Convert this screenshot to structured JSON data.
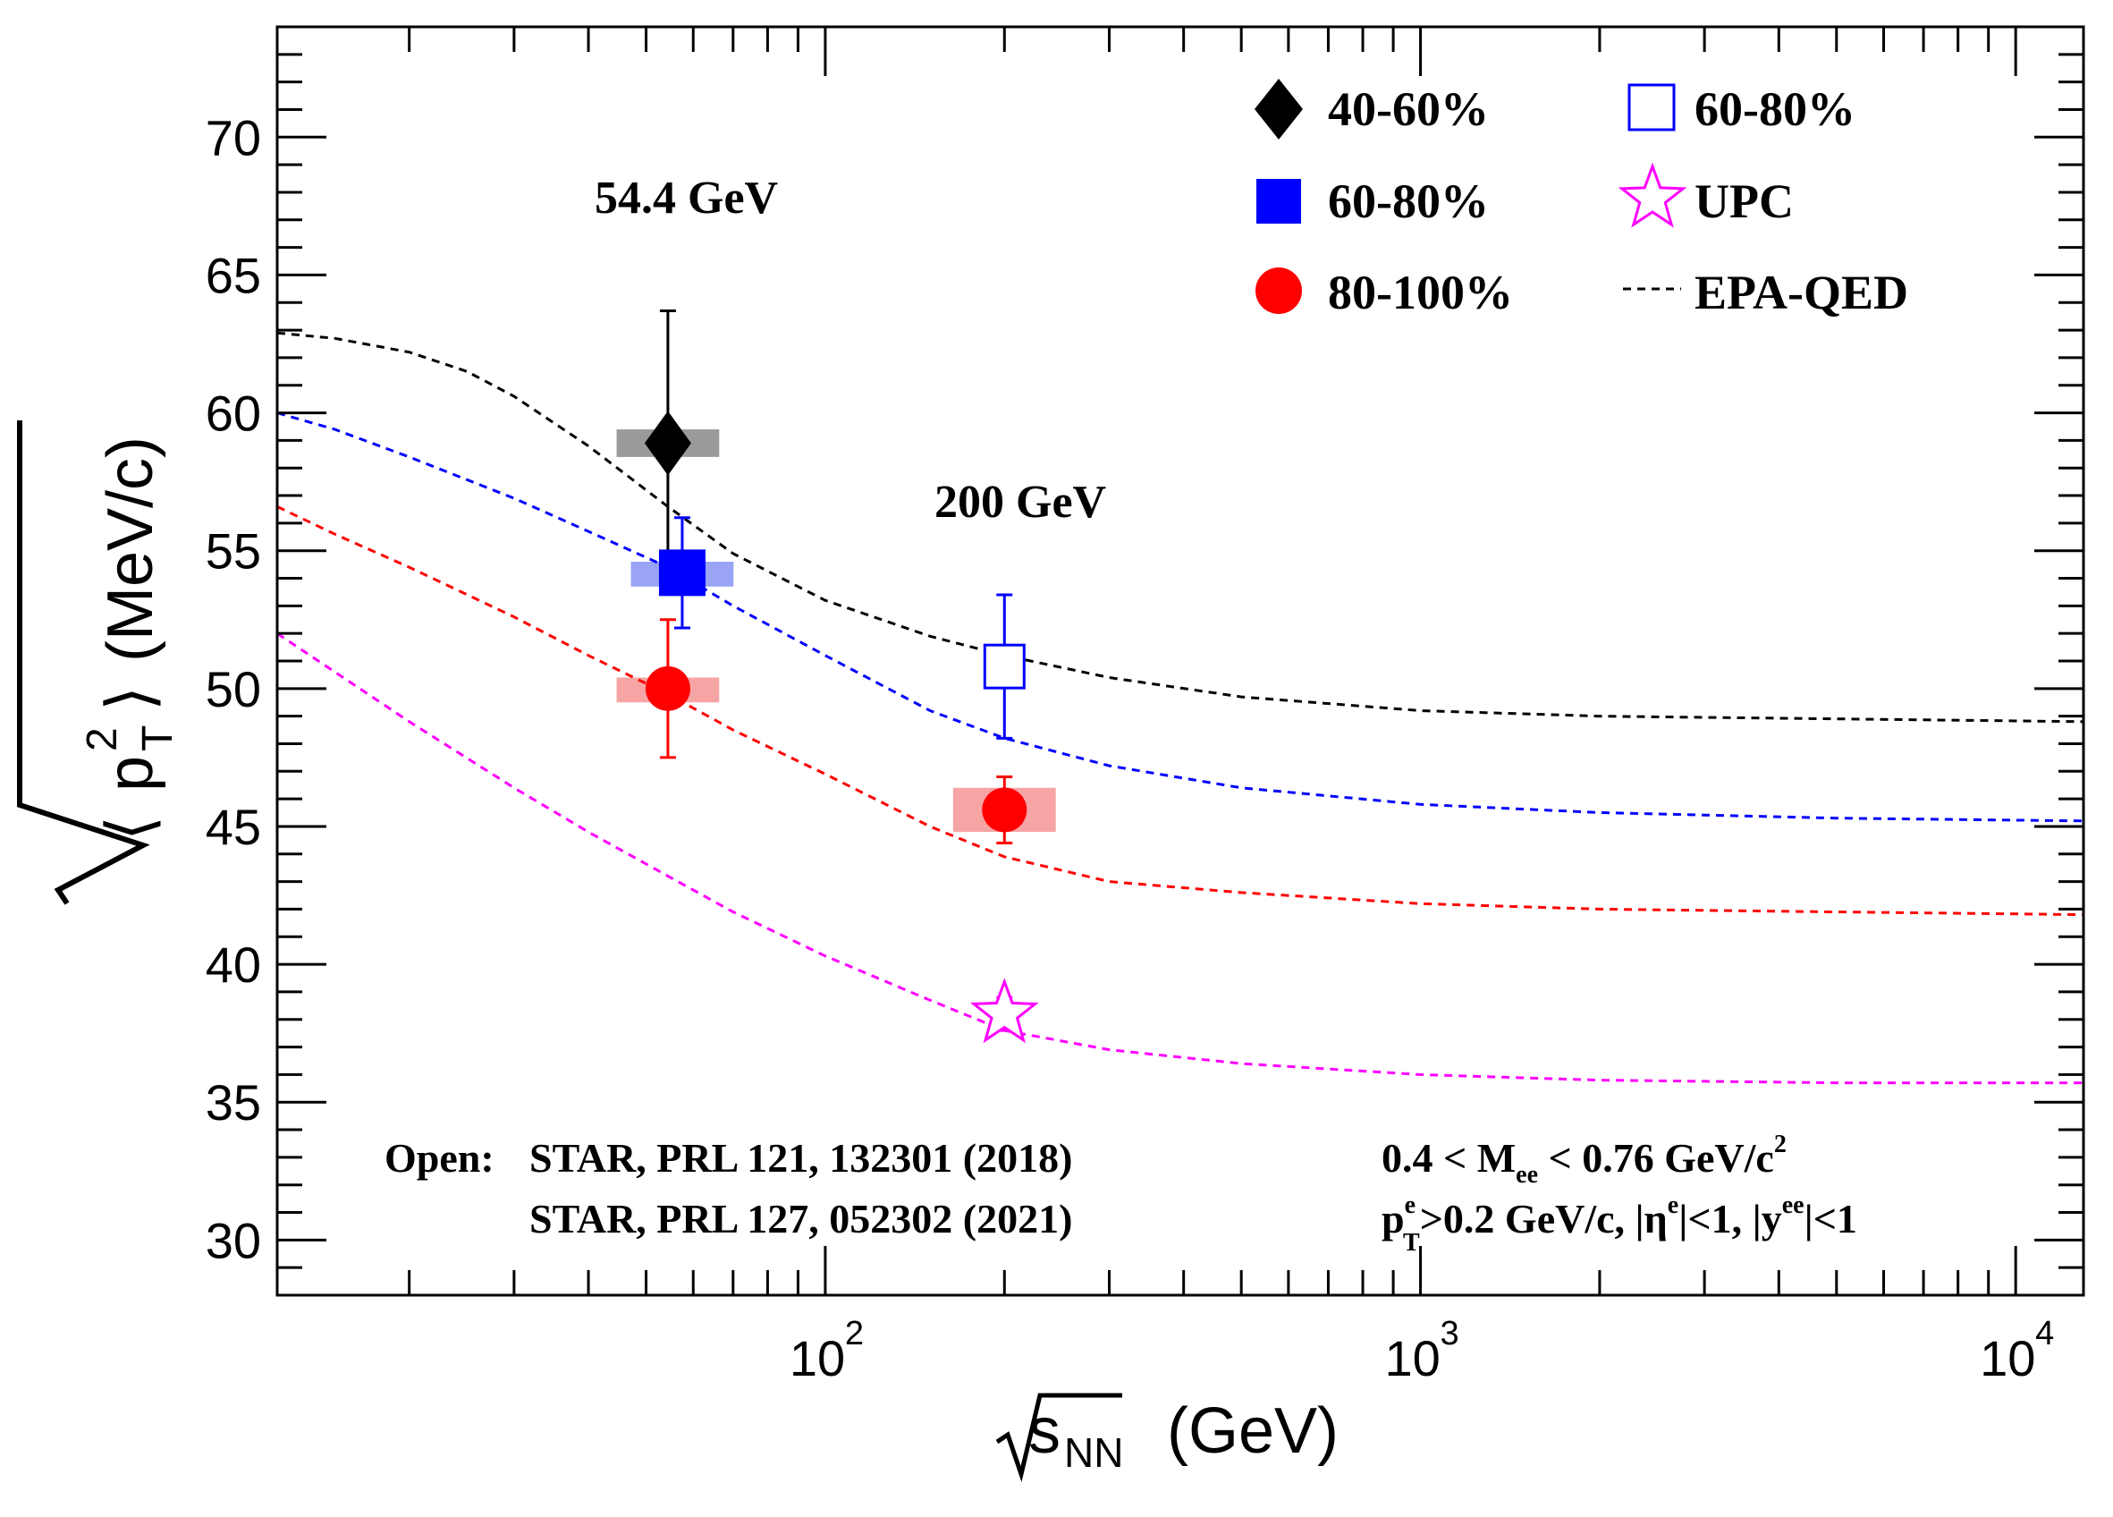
{
  "chart_data": {
    "type": "scatter",
    "title": "",
    "xlabel": "s",
    "xlabel_sub": "NN",
    "xlabel_unit": "(GeV)",
    "ylabel_p": "p",
    "ylabel_sub": "T",
    "ylabel_sup": "2",
    "ylabel_unit": "(MeV/c)",
    "xscale": "log",
    "xlim": [
      12,
      13000
    ],
    "ylim": [
      28,
      74
    ],
    "y_ticks": [
      30,
      35,
      40,
      45,
      50,
      55,
      60,
      65,
      70
    ],
    "x_ticks": [
      {
        "value": 100,
        "base": "10",
        "exp": "2"
      },
      {
        "value": 1000,
        "base": "10",
        "exp": "3"
      },
      {
        "value": 10000,
        "base": "10",
        "exp": "4"
      }
    ],
    "energy_labels": [
      "54.4 GeV",
      "200 GeV"
    ],
    "series": [
      {
        "name": "40-60%",
        "marker": "diamond-filled",
        "color": "#000000",
        "box_color": "#9a9a9a",
        "points": [
          {
            "x": 54.4,
            "y": 58.9,
            "err": 4.8,
            "sys_low": 58.4,
            "sys_high": 59.4
          }
        ]
      },
      {
        "name": "60-80%",
        "marker": "square-filled",
        "color": "#0000ff",
        "box_color": "#9aa4f4",
        "points": [
          {
            "x": 57.5,
            "y": 54.2,
            "err": 2.0,
            "sys_low": 53.7,
            "sys_high": 54.6
          }
        ]
      },
      {
        "name": "80-100%",
        "marker": "circle-filled",
        "color": "#ff0000",
        "box_color": "#f6a4a4",
        "points": [
          {
            "x": 54.4,
            "y": 50.0,
            "err": 2.5,
            "sys_low": 49.5,
            "sys_high": 50.4
          },
          {
            "x": 200,
            "y": 45.6,
            "err": 1.2,
            "sys_low": 44.8,
            "sys_high": 46.4
          }
        ]
      },
      {
        "name": "60-80%",
        "marker": "square-open",
        "color": "#0000ff",
        "points": [
          {
            "x": 200,
            "y": 50.8,
            "err": 2.6
          }
        ]
      },
      {
        "name": "UPC",
        "marker": "star-open",
        "color": "#ff00ff",
        "points": [
          {
            "x": 200,
            "y": 38.2,
            "err": 0.6
          }
        ]
      }
    ],
    "curves": [
      {
        "name": "EPA-QED",
        "color": "#000000",
        "points": [
          [
            12,
            62.9
          ],
          [
            15,
            62.7
          ],
          [
            20,
            62.2
          ],
          [
            25,
            61.5
          ],
          [
            30,
            60.6
          ],
          [
            40,
            58.8
          ],
          [
            54.4,
            56.6
          ],
          [
            70,
            54.9
          ],
          [
            100,
            53.2
          ],
          [
            150,
            51.9
          ],
          [
            200,
            51.2
          ],
          [
            300,
            50.4
          ],
          [
            500,
            49.7
          ],
          [
            1000,
            49.2
          ],
          [
            2000,
            49.0
          ],
          [
            5000,
            48.9
          ],
          [
            13000,
            48.8
          ]
        ]
      },
      {
        "name": "EPA-QED 60-80%",
        "color": "#0000ff",
        "points": [
          [
            12,
            60.0
          ],
          [
            15,
            59.4
          ],
          [
            20,
            58.4
          ],
          [
            30,
            56.9
          ],
          [
            40,
            55.7
          ],
          [
            54.4,
            54.4
          ],
          [
            70,
            53.0
          ],
          [
            100,
            51.2
          ],
          [
            150,
            49.2
          ],
          [
            200,
            48.2
          ],
          [
            300,
            47.2
          ],
          [
            500,
            46.4
          ],
          [
            1000,
            45.8
          ],
          [
            2000,
            45.5
          ],
          [
            5000,
            45.3
          ],
          [
            13000,
            45.2
          ]
        ]
      },
      {
        "name": "EPA-QED 80-100%",
        "color": "#ff0000",
        "points": [
          [
            12,
            56.6
          ],
          [
            15,
            55.6
          ],
          [
            20,
            54.4
          ],
          [
            30,
            52.6
          ],
          [
            40,
            51.2
          ],
          [
            54.4,
            49.8
          ],
          [
            70,
            48.5
          ],
          [
            100,
            46.9
          ],
          [
            150,
            45.0
          ],
          [
            200,
            43.9
          ],
          [
            300,
            43.0
          ],
          [
            500,
            42.6
          ],
          [
            1000,
            42.2
          ],
          [
            2000,
            42.0
          ],
          [
            5000,
            41.9
          ],
          [
            13000,
            41.8
          ]
        ]
      },
      {
        "name": "EPA-QED UPC",
        "color": "#ff00ff",
        "points": [
          [
            12,
            52.0
          ],
          [
            15,
            50.6
          ],
          [
            20,
            48.8
          ],
          [
            30,
            46.4
          ],
          [
            40,
            44.8
          ],
          [
            54.4,
            43.2
          ],
          [
            70,
            41.9
          ],
          [
            100,
            40.3
          ],
          [
            150,
            38.7
          ],
          [
            200,
            37.6
          ],
          [
            300,
            36.9
          ],
          [
            500,
            36.4
          ],
          [
            1000,
            36.0
          ],
          [
            2000,
            35.8
          ],
          [
            5000,
            35.7
          ],
          [
            13000,
            35.7
          ]
        ]
      }
    ],
    "legend": {
      "placement": "top-right",
      "entries": [
        {
          "label": "40-60%",
          "marker": "diamond-filled",
          "color": "#000000"
        },
        {
          "label": "60-80%",
          "marker": "square-open",
          "color": "#0000ff"
        },
        {
          "label": "60-80%",
          "marker": "square-filled",
          "color": "#0000ff"
        },
        {
          "label": "UPC",
          "marker": "star-open",
          "color": "#ff00ff"
        },
        {
          "label": "80-100%",
          "marker": "circle-filled",
          "color": "#ff0000"
        },
        {
          "label": "EPA-QED",
          "marker": "dashed-line",
          "color": "#000000"
        }
      ]
    },
    "references": {
      "prefix": "Open:",
      "line1": "STAR, PRL 121, 132301 (2018)",
      "line2": "STAR, PRL 127, 052302 (2021)"
    },
    "cuts": {
      "mass_pre": "0.4 < M",
      "mass_sub": "ee",
      "mass_post": " < 0.76 GeV/c",
      "mass_sup": "2",
      "kin_p": "p",
      "kin_p_sup": "e",
      "kin_p_sub": "T",
      "kin_1": ">0.2 GeV/c, |η",
      "kin_eta_sup": "e",
      "kin_2": "|<1, |y",
      "kin_y_sup": "ee",
      "kin_3": "|<1"
    }
  }
}
